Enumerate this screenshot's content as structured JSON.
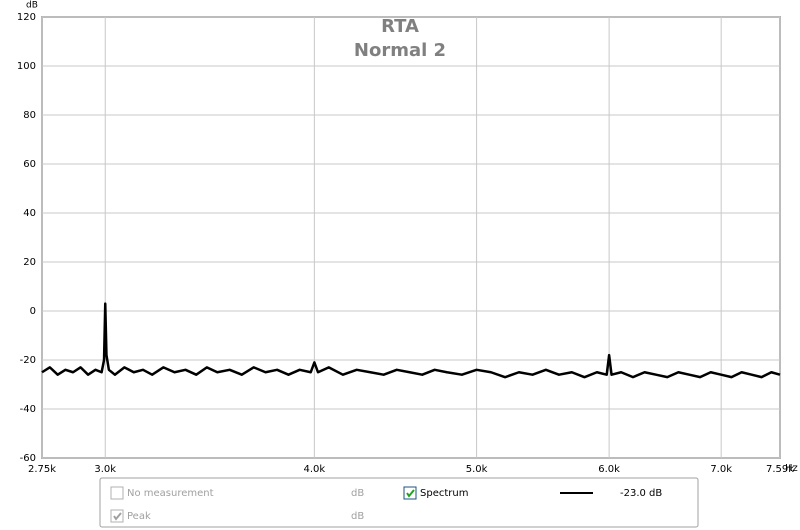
{
  "chart_data": {
    "type": "line",
    "title": "RTA",
    "subtitle": "Normal 2",
    "y_unit": "dB",
    "x_unit": "Hz",
    "log_x": true,
    "grid": true,
    "xlim": [
      2750,
      7590
    ],
    "ylim": [
      -60,
      120
    ],
    "yticks": [
      -60,
      -40,
      -20,
      0,
      20,
      40,
      60,
      80,
      100,
      120
    ],
    "xticks": [
      {
        "value": 2750,
        "label": "2.75k"
      },
      {
        "value": 3000,
        "label": "3.0k"
      },
      {
        "value": 4000,
        "label": "4.0k"
      },
      {
        "value": 5000,
        "label": "5.0k"
      },
      {
        "value": 6000,
        "label": "6.0k"
      },
      {
        "value": 7000,
        "label": "7.0k"
      },
      {
        "value": 7590,
        "label": "7.59k"
      }
    ],
    "x": [
      2750,
      2780,
      2810,
      2840,
      2870,
      2900,
      2930,
      2960,
      2985,
      2995,
      3000,
      3005,
      3015,
      3040,
      3080,
      3120,
      3160,
      3200,
      3250,
      3300,
      3350,
      3400,
      3450,
      3500,
      3560,
      3620,
      3680,
      3740,
      3800,
      3860,
      3920,
      3980,
      4000,
      4020,
      4080,
      4160,
      4240,
      4320,
      4400,
      4480,
      4560,
      4640,
      4720,
      4800,
      4900,
      5000,
      5100,
      5200,
      5300,
      5400,
      5500,
      5600,
      5700,
      5800,
      5900,
      5980,
      6000,
      6020,
      6100,
      6200,
      6300,
      6400,
      6500,
      6600,
      6700,
      6800,
      6900,
      7000,
      7100,
      7200,
      7300,
      7400,
      7500,
      7590
    ],
    "series": [
      {
        "name": "Spectrum",
        "color": "#000000",
        "checked": true,
        "reading": "-23.0 dB",
        "values": [
          -25,
          -23,
          -26,
          -24,
          -25,
          -23,
          -26,
          -24,
          -25,
          -20,
          3,
          -18,
          -24,
          -26,
          -23,
          -25,
          -24,
          -26,
          -23,
          -25,
          -24,
          -26,
          -23,
          -25,
          -24,
          -26,
          -23,
          -25,
          -24,
          -26,
          -24,
          -25,
          -21,
          -25,
          -23,
          -26,
          -24,
          -25,
          -26,
          -24,
          -25,
          -26,
          -24,
          -25,
          -26,
          -24,
          -25,
          -27,
          -25,
          -26,
          -24,
          -26,
          -25,
          -27,
          -25,
          -26,
          -18,
          -26,
          -25,
          -27,
          -25,
          -26,
          -27,
          -25,
          -26,
          -27,
          -25,
          -26,
          -27,
          -25,
          -26,
          -27,
          -25,
          -26
        ]
      }
    ],
    "legend_entries": [
      {
        "label": "No measurement",
        "unit": "dB",
        "checked": false
      },
      {
        "label": "Peak",
        "unit": "dB",
        "checked": true
      }
    ]
  }
}
